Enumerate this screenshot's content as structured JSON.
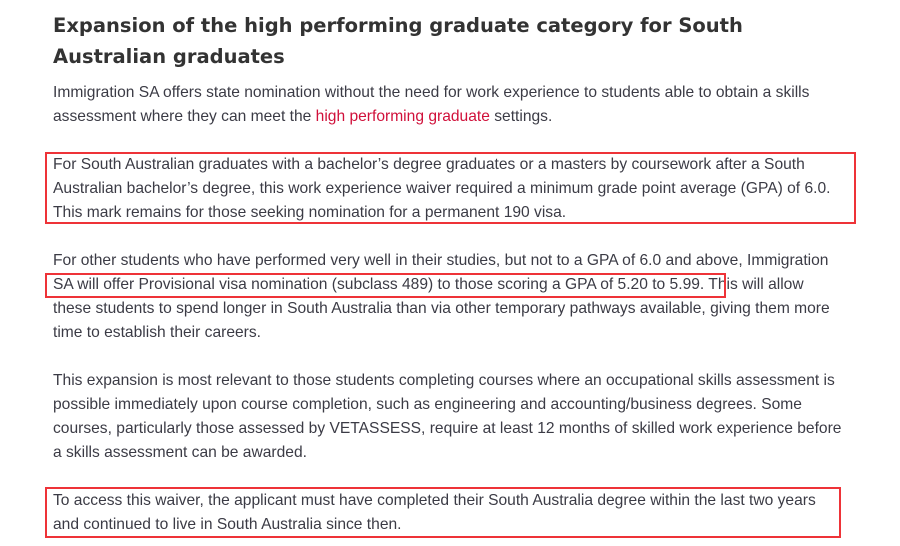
{
  "heading": "Expansion of the high performing graduate category for South Australian graduates",
  "p1": {
    "line1": "Immigration SA offers state nomination without the need for work experience to students able to obtain a skills",
    "line2_before": "assessment where they can meet the ",
    "link": "high performing graduate",
    "line2_after": " settings."
  },
  "p2": [
    "For South Australian graduates with a bachelor’s degree graduates or a masters by coursework after a South",
    "Australian bachelor’s degree, this work experience waiver required a minimum grade point average (GPA) of 6.0.",
    "This mark remains for those seeking nomination for a permanent 190 visa."
  ],
  "p3": [
    "For other students who have performed very well in their studies, but not to a GPA of 6.0 and above, Immigration",
    "SA will offer Provisional visa nomination (subclass 489) to those scoring a GPA of 5.20 to 5.99. This will allow",
    "these students to spend longer in South Australia than via other temporary pathways available, giving them more",
    "time to establish their careers."
  ],
  "p4": [
    "This expansion is most relevant to those students completing courses where an occupational skills assessment is",
    "possible immediately upon course completion, such as engineering and accounting/business degrees. Some",
    "courses, particularly those assessed by VETASSESS, require at least 12 months of skilled work experience before",
    "a skills assessment can be awarded."
  ],
  "p5": [
    "To access this waiver, the applicant must have completed their South Australia degree within the last two years",
    "and continued to live in South Australia since then."
  ],
  "colors": {
    "link": "#d0103a",
    "highlight_box": "#ee3338"
  }
}
